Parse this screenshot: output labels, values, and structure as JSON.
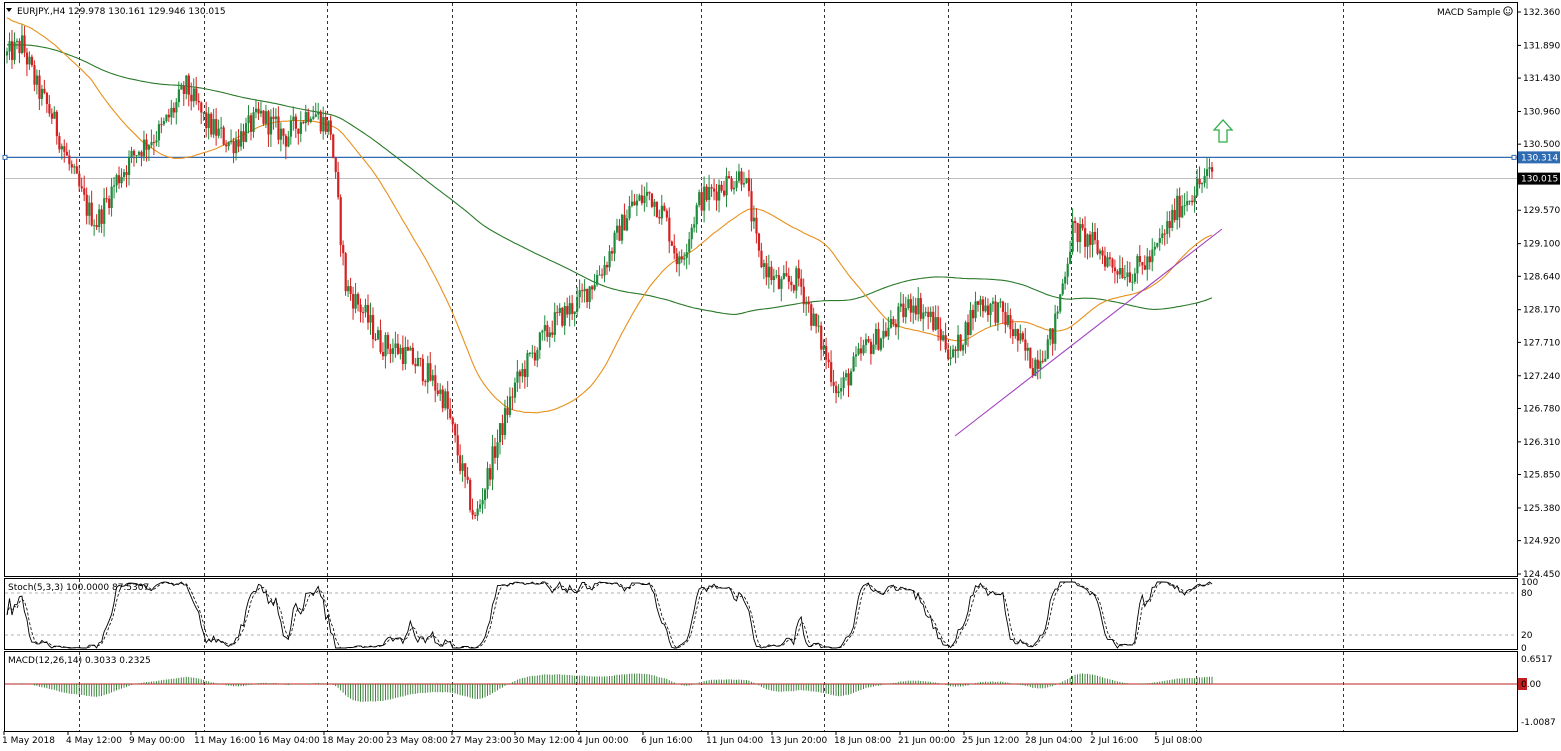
{
  "main": {
    "header": "EURJPY.,H4  129.978 130.161 129.946 130.015",
    "expert_label": "MACD Sample",
    "price_ticks": [
      "132.360",
      "131.890",
      "131.430",
      "130.960",
      "130.500",
      "129.570",
      "129.100",
      "128.640",
      "128.170",
      "127.710",
      "127.240",
      "126.780",
      "126.310",
      "125.850",
      "125.380",
      "124.920",
      "124.450"
    ],
    "hline_price": "130.314",
    "last_price": "130.015"
  },
  "stoch": {
    "header": "Stoch(5,3,3) 100.0000 87.5307",
    "levels": [
      "100",
      "80",
      "20",
      "0"
    ]
  },
  "macd": {
    "header": "MACD(12,26,14) 0.3033 0.2325",
    "ticks": [
      "0.6517",
      "0.00",
      "-1.0087"
    ]
  },
  "time_labels": [
    "1 May 2018",
    "4 May 12:00",
    "9 May 00:00",
    "11 May 16:00",
    "16 May 04:00",
    "18 May 20:00",
    "23 May 08:00",
    "27 May 23:00",
    "30 May 12:00",
    "4 Jun 00:00",
    "6 Jun 16:00",
    "11 Jun 04:00",
    "13 Jun 20:00",
    "18 Jun 08:00",
    "21 Jun 00:00",
    "25 Jun 12:00",
    "28 Jun 04:00",
    "2 Jul 16:00",
    "5 Jul 08:00"
  ],
  "colors": {
    "bull": "#1e8a3c",
    "bear": "#d42020",
    "ma_fast": "#e8901c",
    "ma_slow": "#2a7a2a",
    "hline": "#2e6bb0",
    "trendline": "#a040c0",
    "arrow": "#2fae4a",
    "macd_zero": "#c02020"
  },
  "icons": {
    "expert": "smiley-icon",
    "dropdown": "triangle-down-icon",
    "signal": "up-arrow-icon"
  }
}
